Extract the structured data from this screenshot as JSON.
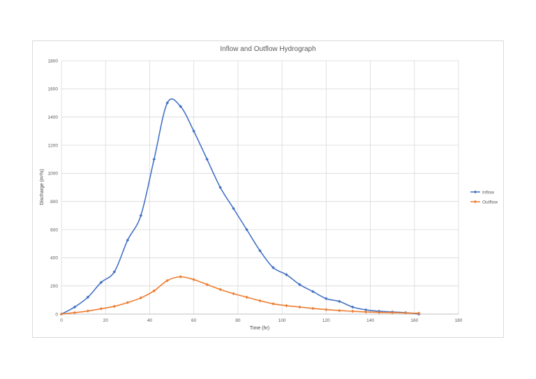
{
  "chart_data": {
    "type": "line",
    "title": "Inflow and Outflow Hydrograph",
    "xlabel": "Time (hr)",
    "ylabel": "Discharge (m³/s)",
    "xlim": [
      0,
      180
    ],
    "ylim": [
      0,
      1800
    ],
    "xticks": [
      0,
      20,
      40,
      60,
      80,
      100,
      120,
      140,
      160,
      180
    ],
    "yticks": [
      0,
      200,
      400,
      600,
      800,
      1000,
      1200,
      1400,
      1600,
      1800
    ],
    "grid": true,
    "smooth": true,
    "legend_position": "right",
    "series": [
      {
        "name": "Inflow",
        "color": "#4472c4",
        "x": [
          0,
          6,
          12,
          18,
          24,
          30,
          36,
          42,
          48,
          54,
          60,
          66,
          72,
          78,
          84,
          90,
          96,
          102,
          108,
          114,
          120,
          126,
          132,
          138,
          144,
          150,
          156,
          162
        ],
        "y": [
          0,
          50,
          120,
          225,
          300,
          525,
          700,
          1100,
          1500,
          1475,
          1300,
          1100,
          900,
          750,
          600,
          450,
          330,
          280,
          210,
          160,
          110,
          90,
          50,
          30,
          20,
          15,
          10,
          0
        ]
      },
      {
        "name": "Outflow",
        "color": "#ed7d31",
        "x": [
          0,
          6,
          12,
          18,
          24,
          30,
          36,
          42,
          48,
          54,
          60,
          66,
          72,
          78,
          84,
          90,
          96,
          102,
          108,
          114,
          120,
          126,
          132,
          138,
          144,
          150,
          156,
          162
        ],
        "y": [
          0,
          10,
          22,
          38,
          55,
          82,
          115,
          165,
          238,
          265,
          245,
          210,
          175,
          145,
          120,
          95,
          73,
          60,
          50,
          40,
          32,
          25,
          20,
          15,
          12,
          10,
          8,
          6
        ]
      }
    ]
  }
}
